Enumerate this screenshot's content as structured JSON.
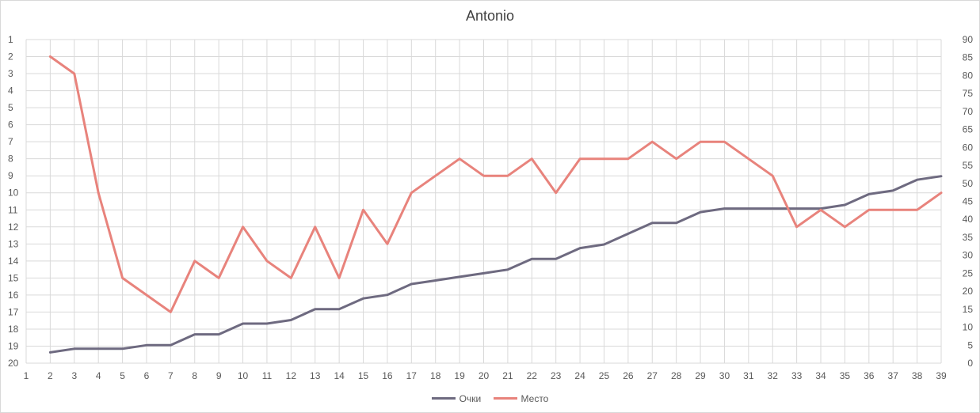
{
  "chart_data": {
    "type": "line",
    "title": "Antonio",
    "x": [
      2,
      3,
      4,
      5,
      6,
      7,
      8,
      9,
      10,
      11,
      12,
      13,
      14,
      15,
      16,
      17,
      18,
      19,
      20,
      21,
      22,
      23,
      24,
      25,
      26,
      27,
      28,
      29,
      30,
      31,
      32,
      33,
      34,
      35,
      36,
      37,
      38,
      39
    ],
    "x_ticks": [
      1,
      2,
      3,
      4,
      5,
      6,
      7,
      8,
      9,
      10,
      11,
      12,
      13,
      14,
      15,
      16,
      17,
      18,
      19,
      20,
      21,
      22,
      23,
      24,
      25,
      26,
      27,
      28,
      29,
      30,
      31,
      32,
      33,
      34,
      35,
      36,
      37,
      38,
      39
    ],
    "xlim": [
      1,
      39
    ],
    "left_axis": {
      "reversed": true,
      "ylim": [
        1,
        20
      ],
      "ticks": [
        1,
        2,
        3,
        4,
        5,
        6,
        7,
        8,
        9,
        10,
        11,
        12,
        13,
        14,
        15,
        16,
        17,
        18,
        19,
        20
      ]
    },
    "right_axis": {
      "ylim": [
        0,
        90
      ],
      "ticks": [
        0,
        5,
        10,
        15,
        20,
        25,
        30,
        35,
        40,
        45,
        50,
        55,
        60,
        65,
        70,
        75,
        80,
        85,
        90
      ]
    },
    "grid": true,
    "legend_position": "bottom",
    "series": [
      {
        "name": "Очки",
        "axis": "right",
        "color": "#6e6a80",
        "values": [
          3,
          4,
          4,
          4,
          5,
          5,
          8,
          8,
          11,
          11,
          12,
          15,
          15,
          18,
          19,
          22,
          23,
          24,
          25,
          26,
          29,
          29,
          32,
          33,
          36,
          39,
          39,
          42,
          43,
          43,
          43,
          43,
          43,
          44,
          47,
          48,
          51,
          52
        ]
      },
      {
        "name": "Место",
        "axis": "left",
        "color": "#e8837c",
        "values": [
          2,
          3,
          10,
          15,
          16,
          17,
          14,
          15,
          12,
          14,
          15,
          12,
          15,
          11,
          13,
          10,
          9,
          8,
          9,
          9,
          8,
          10,
          8,
          8,
          8,
          7,
          8,
          7,
          7,
          8,
          9,
          12,
          11,
          12,
          11,
          11,
          11,
          10
        ]
      }
    ]
  }
}
